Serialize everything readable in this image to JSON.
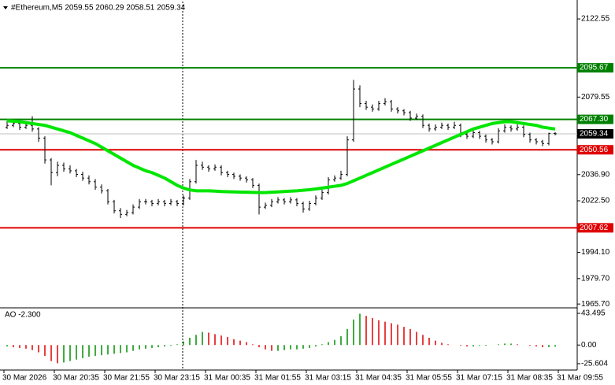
{
  "chart_data": {
    "type": "candlestick",
    "title": "#Ethereum,M5  2059.55 2060.29 2058.51 2059.34",
    "ylim": [
      1963.6,
      2132.1
    ],
    "yticks": [
      2122.55,
      2079.55,
      {
        "value": 2036.9,
        "label": "2036.90"
      },
      {
        "value": 2022.5,
        "label": "2022.50"
      },
      {
        "value": 1994.1,
        "label": "1994.10"
      },
      {
        "value": 1979.7,
        "label": "1979.70"
      },
      {
        "value": 1965.7,
        "label": "1965.70"
      }
    ],
    "x_labels": [
      "30 Mar 2026",
      "30 Mar 20:35",
      "30 Mar 21:55",
      "30 Mar 23:15",
      "31 Mar 00:35",
      "31 Mar 01:55",
      "31 Mar 03:15",
      "31 Mar 04:35",
      "31 Mar 05:55",
      "31 Mar 07:15",
      "31 Mar 08:35",
      "31 Mar 09:55"
    ],
    "candle_color": "#000000",
    "candles": [
      [
        2063,
        2066.5,
        2062,
        2064
      ],
      [
        2064,
        2066.5,
        2063,
        2065
      ],
      [
        2065,
        2066,
        2061.5,
        2063
      ],
      [
        2063,
        2065.5,
        2062,
        2064
      ],
      [
        2064,
        2069,
        2060.5,
        2062
      ],
      [
        2062,
        2063,
        2055,
        2057
      ],
      [
        2057,
        2058,
        2043,
        2045
      ],
      [
        2045,
        2046,
        2031,
        2038
      ],
      [
        2038,
        2044,
        2036,
        2042
      ],
      [
        2042,
        2043.5,
        2038.5,
        2040
      ],
      [
        2040,
        2042,
        2037.5,
        2039
      ],
      [
        2039,
        2040,
        2035.5,
        2037
      ],
      [
        2037,
        2038.5,
        2033.5,
        2035
      ],
      [
        2035,
        2036.5,
        2031.5,
        2033
      ],
      [
        2033,
        2034.5,
        2028.5,
        2030
      ],
      [
        2030,
        2031.5,
        2026.5,
        2028
      ],
      [
        2028,
        2029,
        2020.5,
        2022
      ],
      [
        2022,
        2023,
        2015.5,
        2017
      ],
      [
        2017,
        2018.5,
        2013,
        2015
      ],
      [
        2015,
        2017.5,
        2014,
        2016
      ],
      [
        2016,
        2020.5,
        2015,
        2019
      ],
      [
        2019,
        2023.5,
        2018,
        2022
      ],
      [
        2022,
        2023.5,
        2020.5,
        2022
      ],
      [
        2022,
        2023,
        2019.5,
        2021
      ],
      [
        2021,
        2023.5,
        2020,
        2022
      ],
      [
        2022,
        2023,
        2019.5,
        2021
      ],
      [
        2021,
        2023.5,
        2020,
        2022
      ],
      [
        2022,
        2023,
        2019.5,
        2021
      ],
      [
        2021,
        2025.5,
        2020,
        2024
      ],
      [
        2024,
        2034.5,
        2023,
        2033
      ],
      [
        2033,
        2045,
        2032,
        2042
      ],
      [
        2042,
        2044,
        2039.5,
        2041
      ],
      [
        2041,
        2042,
        2038.5,
        2040
      ],
      [
        2040,
        2042.5,
        2039,
        2041
      ],
      [
        2041,
        2042,
        2036.5,
        2038
      ],
      [
        2038,
        2039,
        2035.5,
        2037
      ],
      [
        2037,
        2038,
        2034.5,
        2036
      ],
      [
        2036,
        2037,
        2033.5,
        2035
      ],
      [
        2035,
        2036,
        2032.5,
        2034
      ],
      [
        2034,
        2035,
        2029.5,
        2031
      ],
      [
        2031,
        2032,
        2015,
        2019
      ],
      [
        2019,
        2021.5,
        2018,
        2020
      ],
      [
        2020,
        2023.5,
        2019,
        2022
      ],
      [
        2022,
        2024.5,
        2021,
        2023
      ],
      [
        2023,
        2024,
        2020.5,
        2022
      ],
      [
        2022,
        2024.5,
        2021,
        2023
      ],
      [
        2023,
        2024,
        2019.5,
        2021
      ],
      [
        2021,
        2022,
        2016,
        2018
      ],
      [
        2018,
        2022.5,
        2017,
        2021
      ],
      [
        2021,
        2025.5,
        2020,
        2024
      ],
      [
        2024,
        2028.5,
        2023,
        2027
      ],
      [
        2027,
        2035.5,
        2026,
        2034
      ],
      [
        2034,
        2036.5,
        2033,
        2035
      ],
      [
        2035,
        2039,
        2034,
        2037
      ],
      [
        2037,
        2058,
        2036,
        2056
      ],
      [
        2056,
        2089,
        2055,
        2084
      ],
      [
        2084,
        2086,
        2074,
        2076
      ],
      [
        2076,
        2077.5,
        2072.5,
        2074
      ],
      [
        2074,
        2075.5,
        2071.5,
        2073
      ],
      [
        2073,
        2077.5,
        2072,
        2076
      ],
      [
        2076,
        2079,
        2075,
        2077
      ],
      [
        2077,
        2078,
        2071.5,
        2073
      ],
      [
        2073,
        2074,
        2070.5,
        2072
      ],
      [
        2072,
        2073,
        2069.5,
        2071
      ],
      [
        2071,
        2072,
        2066.5,
        2068
      ],
      [
        2068,
        2070.5,
        2067,
        2069
      ],
      [
        2069,
        2070,
        2062.5,
        2064
      ],
      [
        2064,
        2065,
        2060.5,
        2062
      ],
      [
        2062,
        2064.5,
        2061,
        2063
      ],
      [
        2063,
        2065.5,
        2062,
        2064
      ],
      [
        2064,
        2065,
        2061.5,
        2063
      ],
      [
        2063,
        2066,
        2062,
        2064
      ],
      [
        2064,
        2065,
        2057.5,
        2059
      ],
      [
        2059,
        2060,
        2056.5,
        2058
      ],
      [
        2058,
        2061.5,
        2057,
        2060
      ],
      [
        2060,
        2061,
        2056.5,
        2058
      ],
      [
        2058,
        2059,
        2054.5,
        2056
      ],
      [
        2056,
        2057,
        2053.5,
        2055
      ],
      [
        2055,
        2062.5,
        2054,
        2061
      ],
      [
        2061,
        2064.5,
        2060,
        2063
      ],
      [
        2063,
        2064,
        2060.5,
        2062
      ],
      [
        2062,
        2064.5,
        2061,
        2063
      ],
      [
        2063,
        2064,
        2057.5,
        2059
      ],
      [
        2059,
        2060,
        2054.5,
        2056
      ],
      [
        2056,
        2057,
        2053.5,
        2055
      ],
      [
        2055,
        2056,
        2052.5,
        2054
      ],
      [
        2054,
        2060,
        2053,
        2059.55
      ],
      [
        2059.55,
        2060.29,
        2058.51,
        2059.34
      ]
    ],
    "ma_color": "#00e600",
    "ma": [
      2066.5,
      2066.3,
      2066,
      2065.5,
      2065,
      2064.5,
      2064,
      2063,
      2062,
      2061,
      2060,
      2058.5,
      2057,
      2055.5,
      2054,
      2052,
      2050,
      2048,
      2046,
      2044,
      2042,
      2040.5,
      2039,
      2038,
      2036.5,
      2035,
      2033,
      2031,
      2029.5,
      2028.5,
      2028,
      2028,
      2028,
      2027.8,
      2027.6,
      2027.5,
      2027.4,
      2027.3,
      2027.2,
      2027.1,
      2027,
      2027,
      2027.2,
      2027.4,
      2027.6,
      2027.8,
      2028,
      2028.3,
      2028.6,
      2029,
      2029.5,
      2030,
      2030.5,
      2031,
      2032,
      2033.5,
      2035,
      2036.5,
      2038,
      2039.5,
      2041,
      2042.5,
      2044,
      2045.5,
      2047,
      2048.5,
      2050,
      2051.5,
      2053,
      2054.5,
      2056,
      2057.5,
      2059,
      2060.5,
      2062,
      2063,
      2064,
      2065,
      2065.5,
      2066,
      2066,
      2065.5,
      2065,
      2064.5,
      2064,
      2063,
      2062.5,
      2062
    ],
    "levels": [
      {
        "value": 2095.67,
        "color": "#008000"
      },
      {
        "value": 2067.3,
        "label": "2067.30",
        "color": "#008000"
      },
      {
        "value": 2050.56,
        "color": "#e00000"
      },
      {
        "value": 2007.62,
        "color": "#e00000"
      }
    ],
    "current_price": 2059.34,
    "current_color": "#000000",
    "ao_title": "AO -2.300",
    "ao_ylim": [
      -30,
      47.8
    ],
    "ao_ticks": [
      43.495,
      {
        "value": 0,
        "label": "0.00"
      },
      -25.604
    ],
    "ao_up_color": "#009000",
    "ao_down_color": "#e00000",
    "ao": [
      -2,
      -3,
      -4,
      -5,
      -7,
      -10,
      -15,
      -22,
      -25,
      -24,
      -22,
      -20,
      -18,
      -16,
      -15,
      -14,
      -13,
      -12,
      -11,
      -10,
      -8,
      -6,
      -5,
      -4,
      -3,
      -2,
      -1,
      1,
      5,
      10,
      14,
      18,
      17,
      15,
      13,
      11,
      8,
      6,
      4,
      1,
      -3,
      -6,
      -8,
      -8,
      -7,
      -6,
      -6,
      -5,
      -4,
      -2,
      1,
      4,
      7,
      12,
      22,
      35,
      43,
      40,
      37,
      34,
      32,
      30,
      28,
      25,
      22,
      18,
      14,
      10,
      6,
      3,
      1,
      0,
      -1,
      -2,
      -2,
      -1,
      -1,
      0,
      1,
      2,
      2,
      1,
      0,
      -1,
      -2,
      -3,
      -3,
      -2.3
    ]
  }
}
